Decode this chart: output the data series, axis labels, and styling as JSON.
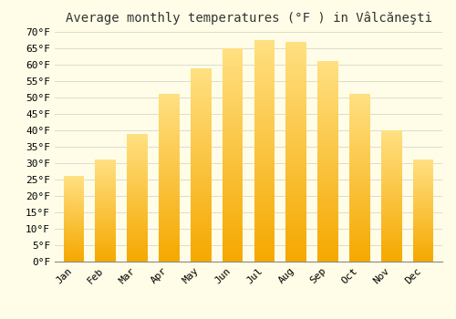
{
  "title": "Average monthly temperatures (°F ) in Vâlcăneşti",
  "months": [
    "Jan",
    "Feb",
    "Mar",
    "Apr",
    "May",
    "Jun",
    "Jul",
    "Aug",
    "Sep",
    "Oct",
    "Nov",
    "Dec"
  ],
  "values": [
    26,
    31,
    39,
    51,
    59,
    65,
    67.5,
    67,
    61,
    51,
    40,
    31
  ],
  "bar_color_bottom": "#F5A800",
  "bar_color_top": "#FFE082",
  "background_color": "#FFFDE7",
  "grid_color": "#DDDDCC",
  "ylim": [
    0,
    70
  ],
  "yticks": [
    0,
    5,
    10,
    15,
    20,
    25,
    30,
    35,
    40,
    45,
    50,
    55,
    60,
    65,
    70
  ],
  "title_fontsize": 10,
  "tick_fontsize": 8,
  "bar_width": 0.65,
  "figsize": [
    5.0,
    3.5
  ],
  "dpi": 100
}
